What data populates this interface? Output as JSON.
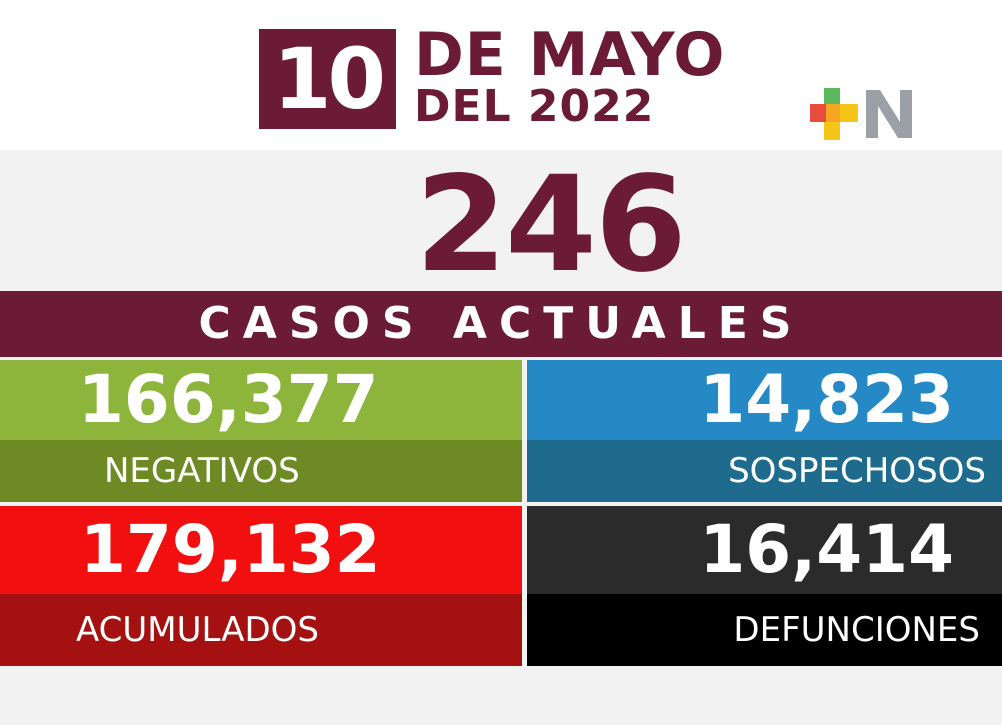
{
  "date": {
    "day": "10",
    "month_line": "DE MAYO",
    "year_line": "DEL 2022"
  },
  "logo": {
    "icon": "plus-n-logo",
    "letter": "N",
    "colors": [
      "#e84c3d",
      "#f5c518",
      "#5cb85c",
      "#9aa0a6"
    ]
  },
  "headline": {
    "value": "246",
    "label": "CASOS ACTUALES"
  },
  "stats": [
    {
      "value": "166,377",
      "label": "NEGATIVOS",
      "color": "#8db53c"
    },
    {
      "value": "14,823",
      "label": "SOSPECHOSOS",
      "color": "#2489c4"
    },
    {
      "value": "179,132",
      "label": "ACUMULADOS",
      "color": "#f20f0f"
    },
    {
      "value": "16,414",
      "label": "DEFUNCIONES",
      "color": "#2b2b2b"
    }
  ],
  "colors": {
    "brand": "#6b1b35",
    "background": "#f2f2f2"
  }
}
